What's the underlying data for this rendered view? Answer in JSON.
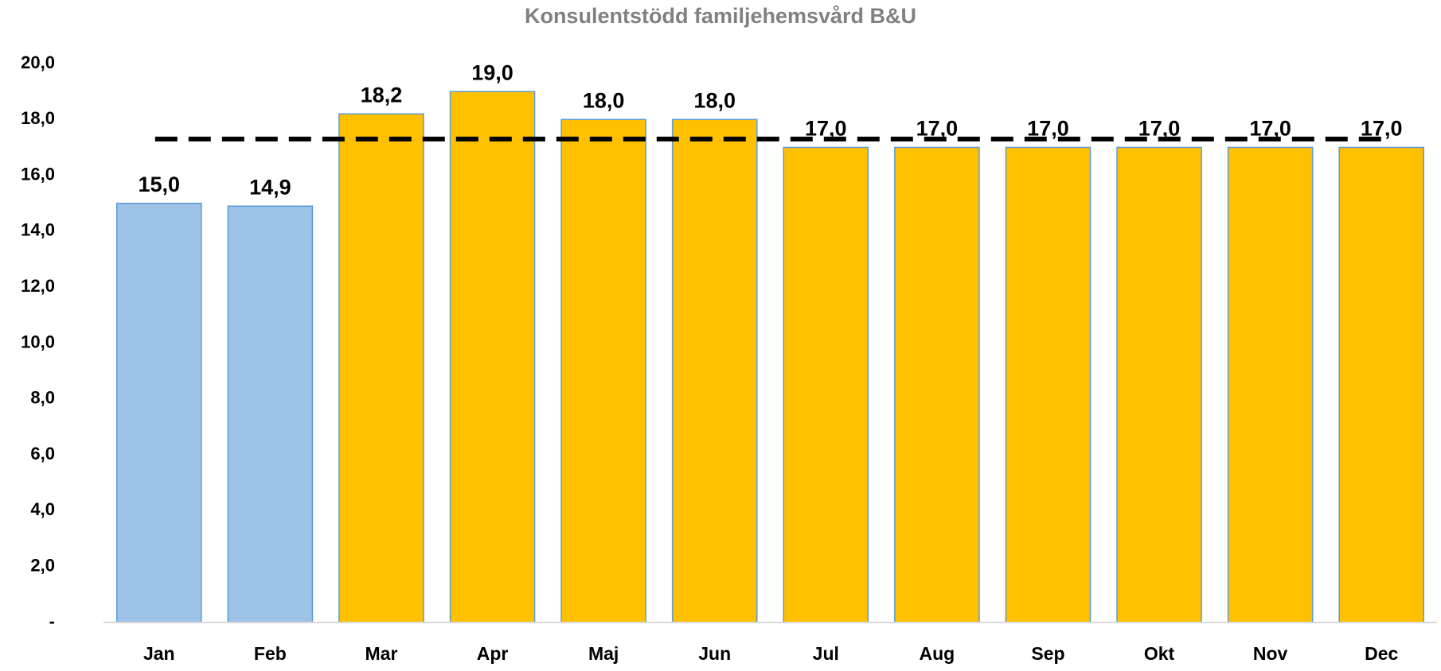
{
  "chart_data": {
    "type": "bar",
    "title": "Konsulentstödd familjehemsvård B&U",
    "categories": [
      "Jan",
      "Feb",
      "Mar",
      "Apr",
      "Maj",
      "Jun",
      "Jul",
      "Aug",
      "Sep",
      "Okt",
      "Nov",
      "Dec"
    ],
    "values": [
      15.0,
      14.9,
      18.2,
      19.0,
      18.0,
      18.0,
      17.0,
      17.0,
      17.0,
      17.0,
      17.0,
      17.0
    ],
    "value_labels": [
      "15,0",
      "14,9",
      "18,2",
      "19,0",
      "18,0",
      "18,0",
      "17,0",
      "17,0",
      "17,0",
      "17,0",
      "17,0",
      "17,0"
    ],
    "colors": [
      "#9dc3e6",
      "#9dc3e6",
      "#ffc000",
      "#ffc000",
      "#ffc000",
      "#ffc000",
      "#ffc000",
      "#ffc000",
      "#ffc000",
      "#ffc000",
      "#ffc000",
      "#ffc000"
    ],
    "reference_line": {
      "value": 17.3,
      "color": "#000000",
      "style": "dashed"
    },
    "ylim": [
      0,
      20
    ],
    "yticks": [
      {
        "value": 0,
        "label": "-"
      },
      {
        "value": 2,
        "label": "2,0"
      },
      {
        "value": 4,
        "label": "4,0"
      },
      {
        "value": 6,
        "label": "6,0"
      },
      {
        "value": 8,
        "label": "8,0"
      },
      {
        "value": 10,
        "label": "10,0"
      },
      {
        "value": 12,
        "label": "12,0"
      },
      {
        "value": 14,
        "label": "14,0"
      },
      {
        "value": 16,
        "label": "16,0"
      },
      {
        "value": 18,
        "label": "18,0"
      },
      {
        "value": 20,
        "label": "20,0"
      }
    ],
    "grid": false
  }
}
